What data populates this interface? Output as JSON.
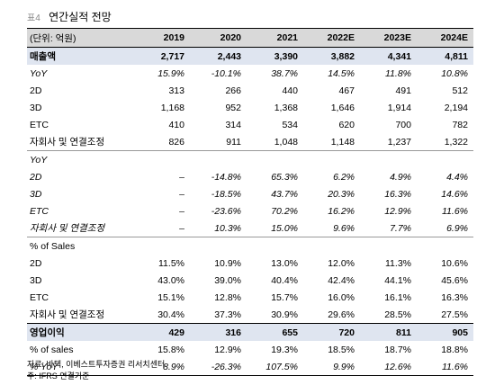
{
  "title": {
    "num": "표4",
    "text": "연간실적 전망"
  },
  "header": {
    "unit": "(단위: 억원)",
    "years": [
      "2019",
      "2020",
      "2021",
      "2022E",
      "2023E",
      "2024E"
    ]
  },
  "rows": [
    {
      "label": "매출액",
      "values": [
        "2,717",
        "2,443",
        "3,390",
        "3,882",
        "4,341",
        "4,811"
      ],
      "style": "hl"
    },
    {
      "label": "YoY",
      "values": [
        "15.9%",
        "-10.1%",
        "38.7%",
        "14.5%",
        "11.8%",
        "10.8%"
      ],
      "style": "it"
    },
    {
      "label": "2D",
      "values": [
        "313",
        "266",
        "440",
        "467",
        "491",
        "512"
      ]
    },
    {
      "label": "3D",
      "values": [
        "1,168",
        "952",
        "1,368",
        "1,646",
        "1,914",
        "2,194"
      ]
    },
    {
      "label": "ETC",
      "values": [
        "410",
        "314",
        "534",
        "620",
        "700",
        "782"
      ]
    },
    {
      "label": "자회사 및 연결조정",
      "values": [
        "826",
        "911",
        "1,048",
        "1,148",
        "1,237",
        "1,322"
      ]
    },
    {
      "label": "YoY",
      "values": [
        "",
        "",
        "",
        "",
        "",
        ""
      ],
      "style": "it sep"
    },
    {
      "label": "2D",
      "values": [
        "–",
        "-14.8%",
        "65.3%",
        "6.2%",
        "4.9%",
        "4.4%"
      ],
      "style": "it"
    },
    {
      "label": "3D",
      "values": [
        "–",
        "-18.5%",
        "43.7%",
        "20.3%",
        "16.3%",
        "14.6%"
      ],
      "style": "it"
    },
    {
      "label": "ETC",
      "values": [
        "–",
        "-23.6%",
        "70.2%",
        "16.2%",
        "12.9%",
        "11.6%"
      ],
      "style": "it"
    },
    {
      "label": "자회사 및 연결조정",
      "values": [
        "–",
        "10.3%",
        "15.0%",
        "9.6%",
        "7.7%",
        "6.9%"
      ],
      "style": "it"
    },
    {
      "label": "% of Sales",
      "values": [
        "",
        "",
        "",
        "",
        "",
        ""
      ],
      "style": "sep"
    },
    {
      "label": "2D",
      "values": [
        "11.5%",
        "10.9%",
        "13.0%",
        "12.0%",
        "11.3%",
        "10.6%"
      ]
    },
    {
      "label": "3D",
      "values": [
        "43.0%",
        "39.0%",
        "40.4%",
        "42.4%",
        "44.1%",
        "45.6%"
      ]
    },
    {
      "label": "ETC",
      "values": [
        "15.1%",
        "12.8%",
        "15.7%",
        "16.0%",
        "16.1%",
        "16.3%"
      ]
    },
    {
      "label": "자회사 및 연결조정",
      "values": [
        "30.4%",
        "37.3%",
        "30.9%",
        "29.6%",
        "28.5%",
        "27.5%"
      ]
    },
    {
      "label": "영업이익",
      "values": [
        "429",
        "316",
        "655",
        "720",
        "811",
        "905"
      ],
      "style": "hl top"
    },
    {
      "label": "% of sales",
      "values": [
        "15.8%",
        "12.9%",
        "19.3%",
        "18.5%",
        "18.7%",
        "18.8%"
      ]
    },
    {
      "label": "% YoY",
      "values": [
        "8.9%",
        "-26.3%",
        "107.5%",
        "9.9%",
        "12.6%",
        "11.6%"
      ],
      "style": "it end"
    }
  ],
  "footnotes": [
    "자료: 바텍, 이베스트투자증권 리서치센터",
    "주: IFRS 연결기준"
  ]
}
